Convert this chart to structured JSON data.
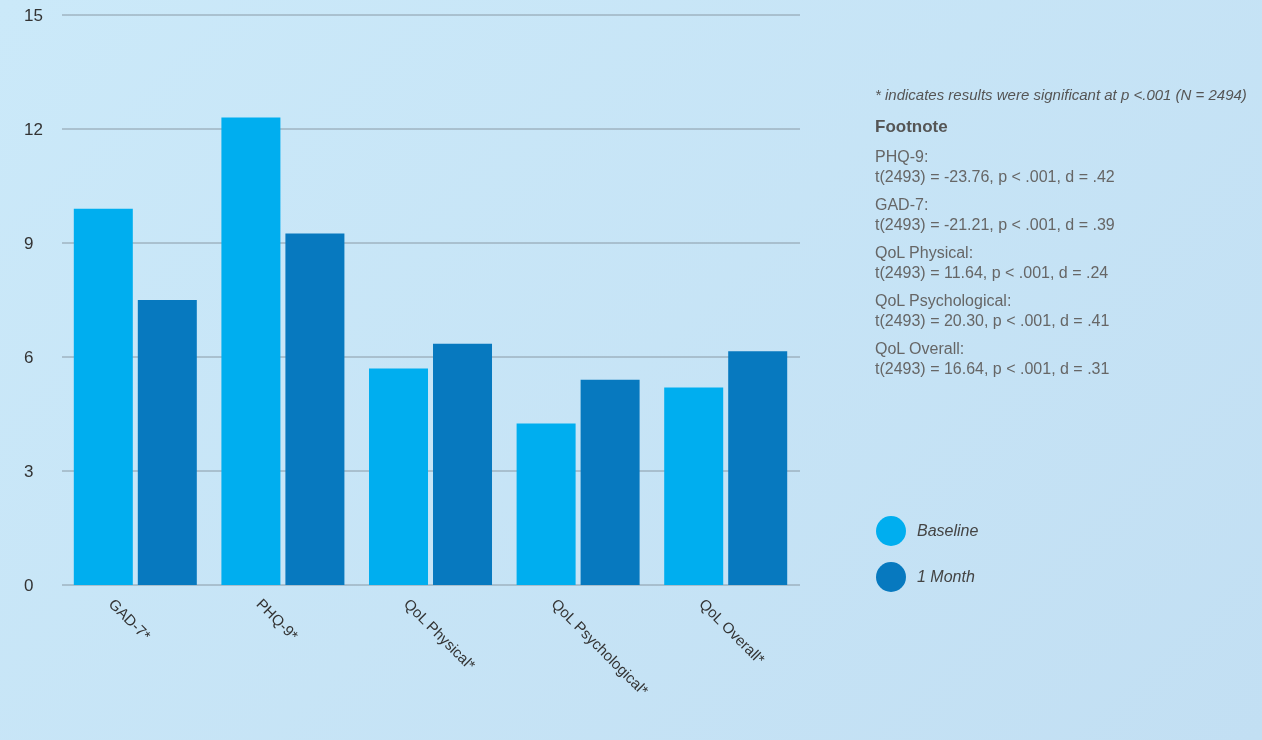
{
  "chart_data": {
    "type": "bar",
    "categories": [
      "GAD-7*",
      "PHQ-9*",
      "QoL Physical*",
      "QoL Psychological*",
      "QoL Overall*"
    ],
    "series": [
      {
        "name": "Baseline",
        "color": "#00aeef",
        "values": [
          9.9,
          12.3,
          5.7,
          4.25,
          5.2
        ]
      },
      {
        "name": "1 Month",
        "color": "#0779bf",
        "values": [
          7.5,
          9.25,
          6.35,
          5.4,
          6.15
        ]
      }
    ],
    "ylim": [
      0,
      15
    ],
    "yticks": [
      0,
      3,
      6,
      9,
      12,
      15
    ],
    "grid": "y",
    "legend": "right",
    "annotations": [
      "* indicates results were significant at p <.001 (N = 2494)",
      "Footnote",
      "PHQ-9:",
      "t(2493) = -23.76, p < .001, d = .42",
      "GAD-7:",
      "t(2493) = -21.21, p < .001, d = .39",
      "QoL Physical:",
      "t(2493) = 11.64, p < .001, d = .24",
      "QoL Psychological:",
      "t(2493) = 20.30, p < .001, d = .41",
      "QoL Overall:",
      "t(2493) = 16.64, p < .001, d = .31"
    ]
  }
}
